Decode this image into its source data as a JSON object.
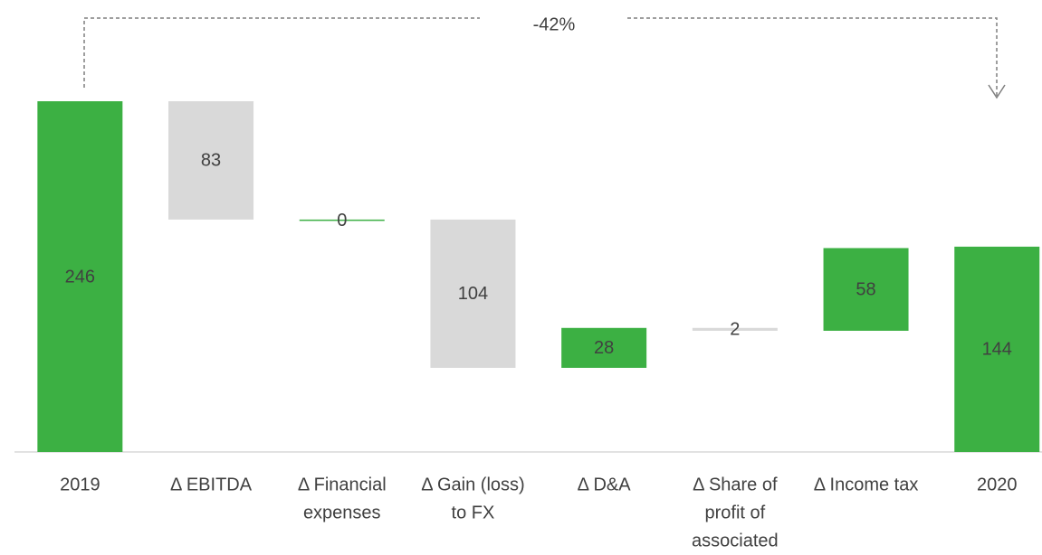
{
  "chart_data": {
    "type": "waterfall",
    "categories": [
      [
        "2019"
      ],
      [
        "Δ EBITDA"
      ],
      [
        "Δ Financial",
        "expenses"
      ],
      [
        "Δ Gain (loss)",
        "to FX"
      ],
      [
        "Δ D&A"
      ],
      [
        "Δ Share of",
        "profit of",
        "associated"
      ],
      [
        "Δ Income tax"
      ],
      [
        "2020"
      ]
    ],
    "measure": [
      "absolute",
      "relative",
      "relative",
      "relative",
      "relative",
      "relative",
      "relative",
      "absolute"
    ],
    "values": [
      246,
      -83,
      0,
      -104,
      28,
      -2,
      58,
      144
    ],
    "value_labels": [
      "246",
      "83",
      "0",
      "104",
      "28",
      "2",
      "58",
      "144"
    ],
    "colors": {
      "total": "#3cb043",
      "increase": "#3cb043",
      "decrease": "#d9d9d9"
    },
    "annotation": "-42%"
  }
}
